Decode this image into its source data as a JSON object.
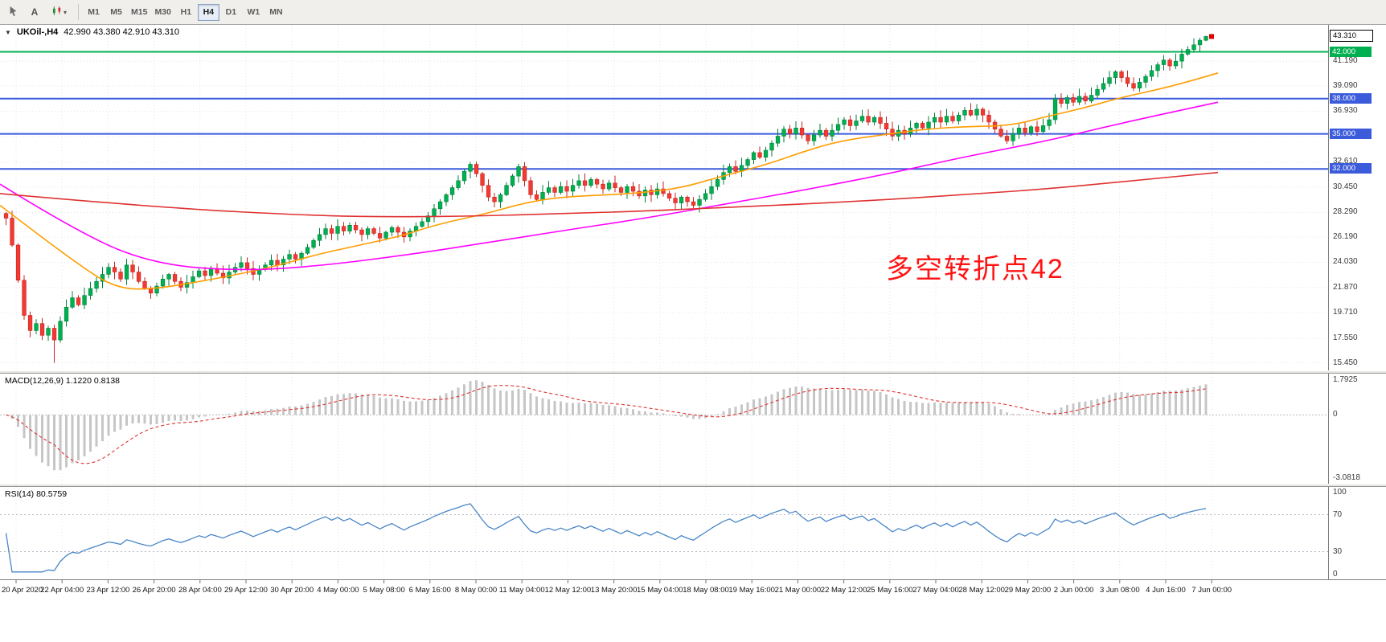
{
  "toolbar": {
    "tools": [
      {
        "name": "cursor-tool",
        "icon": "pointer-icon"
      },
      {
        "name": "text-label-tool",
        "icon": "text-tool-icon",
        "glyph": "A"
      },
      {
        "name": "objects-tool",
        "icon": "indicators-icon",
        "caret": "▾"
      }
    ],
    "timeframes": [
      "M1",
      "M5",
      "M15",
      "M30",
      "H1",
      "H4",
      "D1",
      "W1",
      "MN"
    ],
    "active_timeframe": "H4"
  },
  "chart": {
    "symbol_label": "UKOil-,H4",
    "ohlc_label": "42.990 43.380 42.910 43.310",
    "dropdown_glyph": "▼",
    "annotation": {
      "text": "多空转折点42",
      "color": "#ff1212"
    },
    "macd_label": "MACD(12,26,9) 1.1220 0.8138",
    "rsi_label": "RSI(14) 80.5759",
    "colors": {
      "up": "#00b050",
      "up_border": "#00803a",
      "down": "#f23a32",
      "down_border": "#c42420",
      "ma_fast": "#ff9d00",
      "ma_mid": "#ff00ff",
      "ma_slow": "#e03131",
      "grid": "#e4e4e4",
      "macd_hist": "#c6c6c6",
      "macd_signal": "#e03131",
      "rsi_line": "#4a86c8",
      "rsi_level": "#b9b9c9"
    },
    "price_axis": {
      "grid_labels": [
        "41.190",
        "39.090",
        "36.930",
        "34.770",
        "32.610",
        "30.450",
        "28.290",
        "26.190",
        "24.030",
        "21.870",
        "19.710",
        "17.550",
        "15.450"
      ],
      "grid_prices": [
        41.19,
        39.09,
        36.93,
        34.77,
        32.61,
        30.45,
        28.29,
        26.19,
        24.03,
        21.87,
        19.71,
        17.55,
        15.45
      ],
      "current_badge": {
        "text": "43.310",
        "price": 43.31
      },
      "level_badges": [
        {
          "text": "42.000",
          "price": 42.0,
          "color": "#00b050"
        },
        {
          "text": "38.000",
          "price": 38.0,
          "color": "#3b5bdb"
        },
        {
          "text": "35.000",
          "price": 35.0,
          "color": "#3b5bdb"
        },
        {
          "text": "32.000",
          "price": 32.0,
          "color": "#3b5bdb"
        }
      ]
    },
    "macd_axis": [
      "1.7925",
      "0",
      "-3.0818"
    ],
    "rsi_axis": [
      "100",
      "70",
      "30",
      "0"
    ]
  },
  "chart_data": {
    "type": "candlestick",
    "symbol": "UKOil-",
    "timeframe": "H4",
    "title": "UKOil-,H4 42.990 43.380 42.910 43.310",
    "current_ohlc": {
      "open": 42.99,
      "high": 43.38,
      "low": 42.91,
      "close": 43.31
    },
    "y_range": [
      14.8,
      44.3
    ],
    "closes": [
      27.8,
      25.5,
      22.5,
      19.5,
      18.2,
      18.8,
      17.8,
      18.4,
      17.4,
      19.0,
      20.2,
      21.0,
      20.4,
      21.2,
      21.8,
      22.4,
      23.0,
      23.6,
      23.2,
      22.6,
      23.8,
      23.2,
      22.4,
      21.8,
      21.4,
      22.0,
      22.6,
      23.0,
      22.4,
      21.9,
      22.3,
      22.8,
      23.3,
      22.9,
      23.5,
      23.1,
      22.7,
      23.2,
      23.6,
      24.0,
      23.5,
      23.0,
      23.4,
      23.8,
      24.2,
      23.8,
      24.3,
      24.7,
      24.3,
      24.8,
      25.3,
      25.9,
      26.4,
      26.9,
      26.5,
      27.1,
      26.7,
      27.2,
      26.8,
      26.4,
      26.9,
      26.5,
      26.1,
      26.6,
      27.0,
      26.6,
      26.2,
      26.7,
      27.1,
      27.5,
      28.0,
      28.6,
      29.2,
      29.8,
      30.4,
      31.0,
      31.8,
      32.4,
      31.6,
      30.6,
      29.6,
      29.2,
      29.8,
      30.6,
      31.4,
      32.2,
      31.0,
      29.8,
      29.4,
      30.0,
      30.4,
      30.0,
      30.5,
      30.1,
      30.6,
      31.0,
      30.6,
      31.1,
      30.7,
      30.3,
      30.8,
      30.4,
      30.0,
      30.5,
      30.1,
      29.7,
      30.2,
      29.8,
      30.3,
      29.9,
      29.5,
      29.1,
      29.6,
      29.2,
      28.9,
      29.4,
      29.9,
      30.5,
      31.1,
      31.7,
      32.2,
      31.8,
      32.3,
      32.8,
      33.4,
      33.0,
      33.6,
      34.2,
      34.8,
      35.4,
      35.0,
      35.5,
      34.9,
      34.4,
      34.9,
      35.3,
      34.8,
      35.3,
      35.8,
      36.2,
      35.7,
      36.1,
      36.5,
      36.0,
      36.4,
      35.9,
      35.4,
      34.8,
      35.3,
      35.0,
      35.5,
      35.9,
      35.5,
      36.0,
      36.4,
      36.0,
      36.5,
      36.1,
      36.6,
      37.0,
      36.6,
      37.1,
      36.6,
      36.0,
      35.4,
      34.8,
      34.4,
      35.0,
      35.5,
      35.1,
      35.6,
      35.2,
      35.7,
      36.2,
      38.0,
      37.6,
      38.1,
      37.7,
      38.2,
      37.8,
      38.3,
      38.8,
      39.3,
      39.8,
      40.3,
      39.8,
      39.3,
      38.9,
      39.4,
      39.9,
      40.4,
      40.9,
      41.3,
      40.8,
      41.2,
      41.8,
      42.2,
      42.6,
      42.99,
      43.31
    ],
    "wick_overrides": {
      "8": {
        "low": 15.45
      },
      "77": {
        "high": 32.61
      },
      "85": {
        "high": 32.45
      },
      "199": {
        "high": 43.38,
        "low": 42.91
      }
    },
    "hlines": [
      {
        "price": 42.0,
        "color": "#00b050",
        "width": 2
      },
      {
        "price": 38.0,
        "color": "#3b5bdb",
        "width": 2
      },
      {
        "price": 35.0,
        "color": "#3b5bdb",
        "width": 2
      },
      {
        "price": 32.0,
        "color": "#3b5bdb",
        "width": 2
      }
    ],
    "ma_lines": [
      {
        "name": "ma-fast-orange",
        "color_key": "ma_fast",
        "points": [
          [
            0,
            28.9
          ],
          [
            0.07,
            23.3
          ],
          [
            0.1,
            21.7
          ],
          [
            0.13,
            21.8
          ],
          [
            0.17,
            22.5
          ],
          [
            0.2,
            23.1
          ],
          [
            0.23,
            23.8
          ],
          [
            0.26,
            24.7
          ],
          [
            0.3,
            25.6
          ],
          [
            0.33,
            26.3
          ],
          [
            0.36,
            27.3
          ],
          [
            0.4,
            28.2
          ],
          [
            0.43,
            29.1
          ],
          [
            0.46,
            29.6
          ],
          [
            0.5,
            29.8
          ],
          [
            0.53,
            30.0
          ],
          [
            0.56,
            30.4
          ],
          [
            0.59,
            31.3
          ],
          [
            0.63,
            32.4
          ],
          [
            0.66,
            33.5
          ],
          [
            0.69,
            34.4
          ],
          [
            0.73,
            35.0
          ],
          [
            0.76,
            35.4
          ],
          [
            0.79,
            35.6
          ],
          [
            0.83,
            35.7
          ],
          [
            0.86,
            36.5
          ],
          [
            0.89,
            37.2
          ],
          [
            0.92,
            38.1
          ],
          [
            0.96,
            39.0
          ],
          [
            1.0,
            40.2
          ]
        ]
      },
      {
        "name": "ma-mid-magenta",
        "color_key": "ma_mid",
        "points": [
          [
            0,
            30.7
          ],
          [
            0.07,
            26.2
          ],
          [
            0.13,
            23.8
          ],
          [
            0.2,
            23.3
          ],
          [
            0.26,
            23.7
          ],
          [
            0.33,
            24.6
          ],
          [
            0.4,
            25.7
          ],
          [
            0.46,
            26.7
          ],
          [
            0.53,
            27.8
          ],
          [
            0.59,
            28.9
          ],
          [
            0.66,
            30.2
          ],
          [
            0.73,
            31.6
          ],
          [
            0.79,
            33.0
          ],
          [
            0.86,
            34.4
          ],
          [
            0.92,
            35.9
          ],
          [
            1.0,
            37.7
          ]
        ]
      },
      {
        "name": "ma-slow-red",
        "color_key": "ma_slow",
        "points": [
          [
            0,
            29.9
          ],
          [
            0.13,
            28.7
          ],
          [
            0.26,
            28.0
          ],
          [
            0.33,
            27.9
          ],
          [
            0.4,
            28.0
          ],
          [
            0.46,
            28.2
          ],
          [
            0.53,
            28.4
          ],
          [
            0.59,
            28.7
          ],
          [
            0.66,
            29.0
          ],
          [
            0.73,
            29.4
          ],
          [
            0.79,
            29.8
          ],
          [
            0.86,
            30.3
          ],
          [
            0.92,
            30.9
          ],
          [
            1.0,
            31.7
          ]
        ]
      }
    ],
    "macd": {
      "fast": 12,
      "slow": 26,
      "signal": 9,
      "value": 1.122,
      "signal_value": 0.8138,
      "range": [
        -3.25,
        1.95
      ]
    },
    "rsi": {
      "period": 14,
      "value": 80.5759,
      "levels": [
        70,
        30
      ],
      "range": [
        0,
        100
      ]
    },
    "x_labels": [
      "20 Apr 2020",
      "22 Apr 04:00",
      "23 Apr 12:00",
      "26 Apr 20:00",
      "28 Apr 04:00",
      "29 Apr 12:00",
      "30 Apr 20:00",
      "4 May 00:00",
      "5 May 08:00",
      "6 May 16:00",
      "8 May 00:00",
      "11 May 04:00",
      "12 May 12:00",
      "13 May 20:00",
      "15 May 04:00",
      "18 May 08:00",
      "19 May 16:00",
      "21 May 00:00",
      "22 May 12:00",
      "25 May 16:00",
      "27 May 04:00",
      "28 May 12:00",
      "29 May 20:00",
      "2 Jun 00:00",
      "3 Jun 08:00",
      "4 Jun 16:00",
      "7 Jun 00:00"
    ]
  }
}
